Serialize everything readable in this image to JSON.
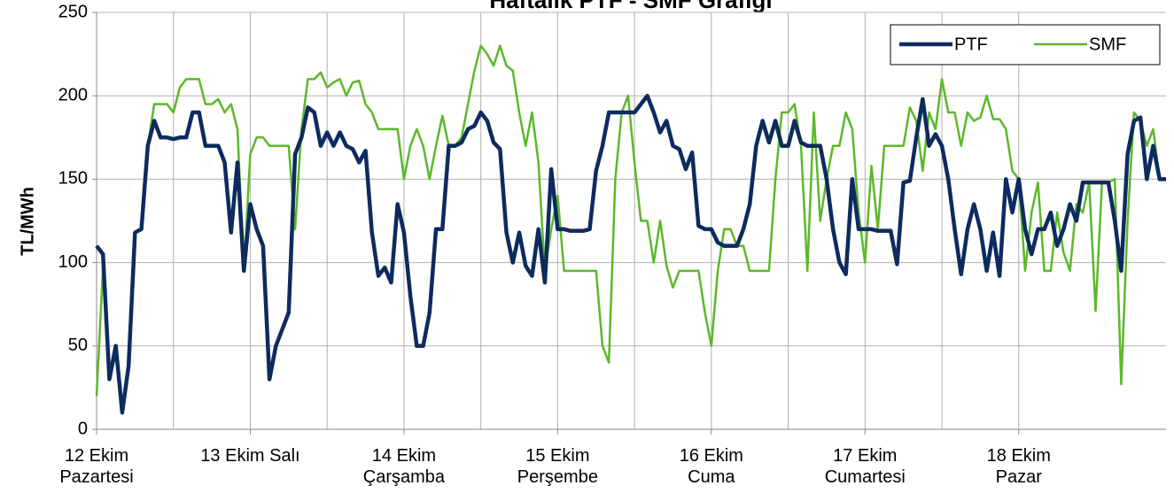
{
  "chart_data": {
    "type": "line",
    "title": "Haftalık PTF - SMF Grafiği",
    "y_label": "TL/MWh",
    "x": [
      0,
      1,
      2,
      3,
      4,
      5,
      6,
      7,
      8,
      9,
      10,
      11,
      12,
      13,
      14,
      15,
      16,
      17,
      18,
      19,
      20,
      21,
      22,
      23,
      24,
      25,
      26,
      27,
      28,
      29,
      30,
      31,
      32,
      33,
      34,
      35,
      36,
      37,
      38,
      39,
      40,
      41,
      42,
      43,
      44,
      45,
      46,
      47,
      48,
      49,
      50,
      51,
      52,
      53,
      54,
      55,
      56,
      57,
      58,
      59,
      60,
      61,
      62,
      63,
      64,
      65,
      66,
      67,
      68,
      69,
      70,
      71,
      72,
      73,
      74,
      75,
      76,
      77,
      78,
      79,
      80,
      81,
      82,
      83,
      84,
      85,
      86,
      87,
      88,
      89,
      90,
      91,
      92,
      93,
      94,
      95,
      96,
      97,
      98,
      99,
      100,
      101,
      102,
      103,
      104,
      105,
      106,
      107,
      108,
      109,
      110,
      111,
      112,
      113,
      114,
      115,
      116,
      117,
      118,
      119,
      120,
      121,
      122,
      123,
      124,
      125,
      126,
      127,
      128,
      129,
      130,
      131,
      132,
      133,
      134,
      135,
      136,
      137,
      138,
      139,
      140,
      141,
      142,
      143,
      144,
      145,
      146,
      147,
      148,
      149,
      150,
      151,
      152,
      153,
      154,
      155,
      156,
      157,
      158,
      159,
      160,
      161,
      162,
      163,
      164,
      165,
      166,
      167
    ],
    "series": [
      {
        "name": "PTF",
        "color": "#0d2b5e",
        "values": [
          110,
          105,
          30,
          50,
          10,
          38,
          118,
          120,
          170,
          185,
          175,
          175,
          174,
          175,
          175,
          190,
          190,
          170,
          170,
          170,
          160,
          118,
          160,
          95,
          135,
          120,
          110,
          30,
          50,
          60,
          70,
          165,
          175,
          193,
          190,
          170,
          178,
          170,
          178,
          170,
          168,
          160,
          167,
          118,
          92,
          97,
          88,
          135,
          118,
          80,
          50,
          50,
          70,
          120,
          120,
          170,
          170,
          172,
          180,
          182,
          190,
          185,
          172,
          168,
          118,
          100,
          118,
          98,
          92,
          120,
          88,
          156,
          120,
          120,
          119,
          119,
          119,
          120,
          155,
          170,
          190,
          190,
          190,
          190,
          190,
          195,
          200,
          190,
          178,
          185,
          170,
          168,
          156,
          166,
          122,
          120,
          120,
          112,
          110,
          110,
          110,
          120,
          135,
          170,
          185,
          172,
          185,
          170,
          170,
          185,
          172,
          170,
          170,
          170,
          150,
          120,
          100,
          93,
          150,
          120,
          120,
          120,
          119,
          119,
          119,
          99,
          148,
          149,
          175,
          198,
          170,
          177,
          170,
          150,
          120,
          93,
          120,
          135,
          120,
          95,
          118,
          92,
          150,
          130,
          150,
          120,
          105,
          120,
          120,
          130,
          110,
          120,
          135,
          125,
          148,
          148,
          148,
          148,
          148,
          125,
          95,
          165,
          185,
          187,
          150,
          170,
          150,
          150
        ]
      },
      {
        "name": "SMF",
        "color": "#5cb82a",
        "values": [
          20,
          97,
          30,
          45,
          10,
          38,
          118,
          120,
          170,
          195,
          195,
          195,
          190,
          205,
          210,
          210,
          210,
          195,
          195,
          198,
          190,
          195,
          180,
          95,
          165,
          175,
          175,
          170,
          170,
          170,
          170,
          120,
          180,
          210,
          210,
          214,
          205,
          208,
          210,
          200,
          208,
          209,
          195,
          190,
          180,
          180,
          180,
          180,
          150,
          170,
          180,
          170,
          150,
          170,
          188,
          170,
          170,
          175,
          195,
          215,
          230,
          225,
          218,
          230,
          218,
          215,
          190,
          170,
          190,
          160,
          95,
          120,
          140,
          95,
          95,
          95,
          95,
          95,
          95,
          50,
          40,
          150,
          190,
          200,
          160,
          125,
          125,
          100,
          125,
          98,
          85,
          95,
          95,
          95,
          95,
          70,
          50,
          95,
          120,
          120,
          110,
          110,
          95,
          95,
          95,
          95,
          150,
          190,
          190,
          195,
          170,
          95,
          190,
          125,
          150,
          170,
          170,
          190,
          180,
          130,
          100,
          158,
          120,
          170,
          170,
          170,
          170,
          193,
          185,
          155,
          190,
          180,
          210,
          190,
          190,
          170,
          190,
          185,
          187,
          200,
          186,
          186,
          180,
          155,
          150,
          95,
          130,
          148,
          95,
          95,
          130,
          106,
          95,
          135,
          130,
          148,
          71,
          148,
          148,
          150,
          27,
          125,
          190,
          185,
          170,
          180,
          150,
          150
        ]
      }
    ],
    "xlim": [
      0,
      167
    ],
    "xticks": [
      {
        "value": 0,
        "label": "12 Ekim\nPazartesi"
      },
      {
        "value": 24,
        "label": "13 Ekim Salı"
      },
      {
        "value": 48,
        "label": "14 Ekim\nÇarşamba"
      },
      {
        "value": 72,
        "label": "15 Ekim\nPerşembe"
      },
      {
        "value": 96,
        "label": "16 Ekim\nCuma"
      },
      {
        "value": 120,
        "label": "17 Ekim\nCumartesi"
      },
      {
        "value": 144,
        "label": "18 Ekim\nPazar"
      }
    ],
    "ylim": [
      0,
      250
    ],
    "yticks": [
      0,
      50,
      100,
      150,
      200,
      250
    ],
    "grid": true,
    "legend": "upper right"
  }
}
